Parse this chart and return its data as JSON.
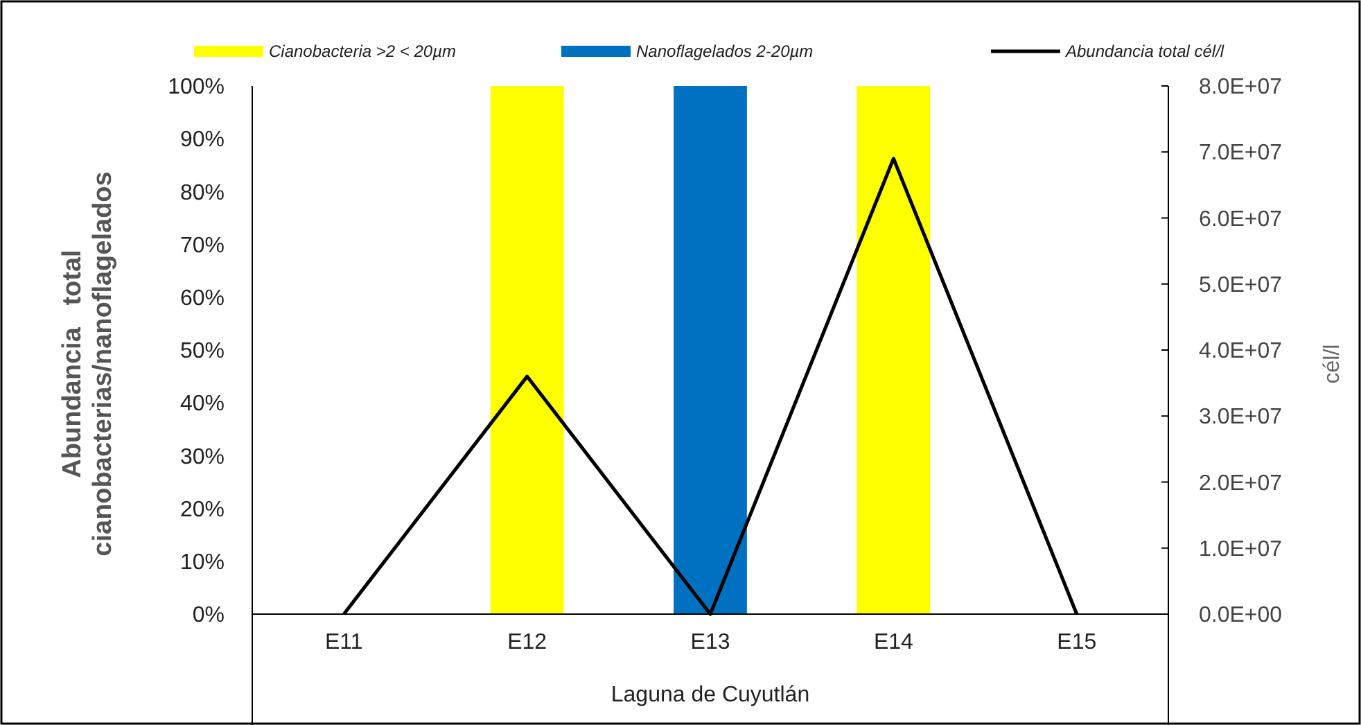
{
  "chart_data": {
    "type": "bar",
    "stacked": true,
    "categories": [
      "E11",
      "E12",
      "E13",
      "E14",
      "E15"
    ],
    "series": [
      {
        "name": "Cianobacteria >2 < 20µm",
        "color": "#ffff00",
        "values": [
          0,
          100,
          0,
          100,
          0
        ]
      },
      {
        "name": "Nanoflagelados 2-20µm",
        "color": "#0070c0",
        "values": [
          0,
          0,
          100,
          0,
          0
        ]
      },
      {
        "name": "Abundancia total cél/l",
        "type": "line",
        "axis": "y2",
        "color": "#000000",
        "values": [
          0,
          36000000,
          0,
          69000000,
          0
        ]
      }
    ],
    "xlabel": "Laguna de Cuyutlán",
    "ylabel": "Abundancia   total\ncianobacterias/nanoflagelados",
    "y2label": "cél/l",
    "ylim": [
      0,
      100
    ],
    "yticks": [
      {
        "value": 0,
        "label": "0%"
      },
      {
        "value": 10,
        "label": "10%"
      },
      {
        "value": 20,
        "label": "20%"
      },
      {
        "value": 30,
        "label": "30%"
      },
      {
        "value": 40,
        "label": "40%"
      },
      {
        "value": 50,
        "label": "50%"
      },
      {
        "value": 60,
        "label": "60%"
      },
      {
        "value": 70,
        "label": "70%"
      },
      {
        "value": 80,
        "label": "80%"
      },
      {
        "value": 90,
        "label": "90%"
      },
      {
        "value": 100,
        "label": "100%"
      }
    ],
    "y2lim": [
      0,
      80000000
    ],
    "y2ticks": [
      {
        "value": 0,
        "label": "0.0E+00"
      },
      {
        "value": 10000000,
        "label": "1.0E+07"
      },
      {
        "value": 20000000,
        "label": "2.0E+07"
      },
      {
        "value": 30000000,
        "label": "3.0E+07"
      },
      {
        "value": 40000000,
        "label": "4.0E+07"
      },
      {
        "value": 50000000,
        "label": "5.0E+07"
      },
      {
        "value": 60000000,
        "label": "6.0E+07"
      },
      {
        "value": 70000000,
        "label": "7.0E+07"
      },
      {
        "value": 80000000,
        "label": "8.0E+07"
      }
    ],
    "legend": "top",
    "grid": false,
    "marker": "none"
  }
}
